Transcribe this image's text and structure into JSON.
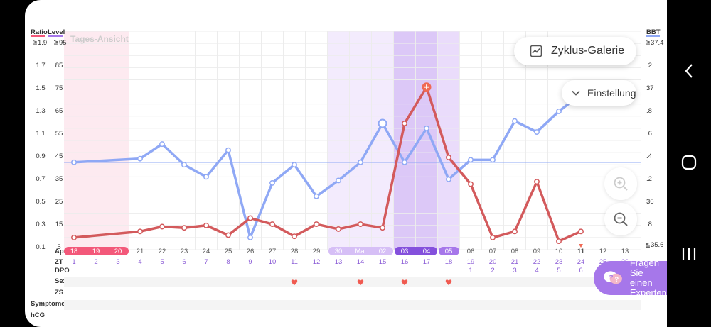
{
  "chart_data": {
    "type": "line",
    "title": "Tages-Ansicht",
    "left_axis_labels": {
      "ratio": "Ratio",
      "level": "Level",
      "ratio_top": "≧1.9",
      "level_top": "≧95"
    },
    "right_axis_label": {
      "name": "BBT",
      "top": "≧37.4",
      "bottom": "≦35.6"
    },
    "ratio_ticks": [
      "1.7",
      "1.5",
      "1.3",
      "1.1",
      "0.9",
      "0.7",
      "0.5",
      "0.3",
      "0.1"
    ],
    "level_ticks": [
      "85",
      "75",
      "65",
      "55",
      "45",
      "35",
      "25",
      "15",
      "5"
    ],
    "bbt_ticks": [
      ".2",
      "37",
      ".8",
      ".6",
      ".4",
      ".2",
      "36",
      ".8"
    ],
    "ratio_range": [
      0.1,
      1.9
    ],
    "bbt_range": [
      35.6,
      37.4
    ],
    "x_count": 26,
    "row_labels": {
      "date": "Apr.",
      "zt": "ZT",
      "dpo": "DPO",
      "sex": "Sex",
      "zs": "ZS",
      "symptome": "Symptome",
      "hcg": "hCG"
    },
    "dates": [
      "18",
      "19",
      "20",
      "21",
      "22",
      "23",
      "24",
      "25",
      "26",
      "27",
      "28",
      "29",
      "30",
      "Mai",
      "02",
      "03",
      "04",
      "05",
      "06",
      "07",
      "08",
      "09",
      "10",
      "11",
      "12",
      "13"
    ],
    "zt": [
      "1",
      "2",
      "3",
      "4",
      "5",
      "6",
      "7",
      "8",
      "9",
      "10",
      "11",
      "12",
      "13",
      "14",
      "15",
      "16",
      "17",
      "18",
      "19",
      "20",
      "21",
      "22",
      "23",
      "24",
      "25",
      "26"
    ],
    "dpo": [
      "",
      "",
      "",
      "",
      "",
      "",
      "",
      "",
      "",
      "",
      "",
      "",
      "",
      "",
      "",
      "",
      "",
      "",
      "1",
      "2",
      "3",
      "4",
      "5",
      "6",
      "",
      ""
    ],
    "sex_days": [
      10,
      13,
      15,
      17
    ],
    "today_index": 23,
    "series": [
      {
        "name": "BBT",
        "color": "#8fa8f5",
        "coverline": 36.32,
        "values": [
          36.32,
          null,
          null,
          36.35,
          36.47,
          36.3,
          36.2,
          36.42,
          35.7,
          36.15,
          36.3,
          36.04,
          36.17,
          36.32,
          36.64,
          36.32,
          36.6,
          36.18,
          36.34,
          36.34,
          36.66,
          36.57,
          36.74,
          36.88,
          null,
          null
        ]
      },
      {
        "name": "Ratio",
        "color": "#d35a5c",
        "values": [
          0.2,
          null,
          null,
          0.25,
          0.29,
          0.28,
          0.3,
          0.22,
          0.36,
          0.31,
          0.21,
          0.31,
          0.27,
          0.31,
          0.28,
          1.14,
          1.44,
          0.86,
          0.64,
          0.2,
          0.25,
          0.66,
          0.17,
          0.25,
          null,
          null
        ]
      }
    ],
    "peak_index": 16,
    "ovulation_index": 14,
    "colors": {
      "period": "#f3587a",
      "period_bg": "#fdeaf0",
      "fertile": "#a677ea",
      "fertile_light": "#d6bff6",
      "ovulation": "#8450dc",
      "grid": "#ececec"
    }
  },
  "buttons": {
    "gallery": "Zyklus-Galerie",
    "settings": "Einstellung",
    "expert_line1": "Fragen",
    "expert_line2": "Sie einen",
    "expert_line3": "Experten"
  },
  "icons": {
    "gallery": "chart-icon",
    "settings": "chevron-down-icon",
    "zoom_in": "zoom-in-icon",
    "zoom_out": "zoom-out-icon",
    "expert": "chat-question-icon",
    "back": "back-icon",
    "home": "home-icon",
    "recents": "recents-icon"
  }
}
